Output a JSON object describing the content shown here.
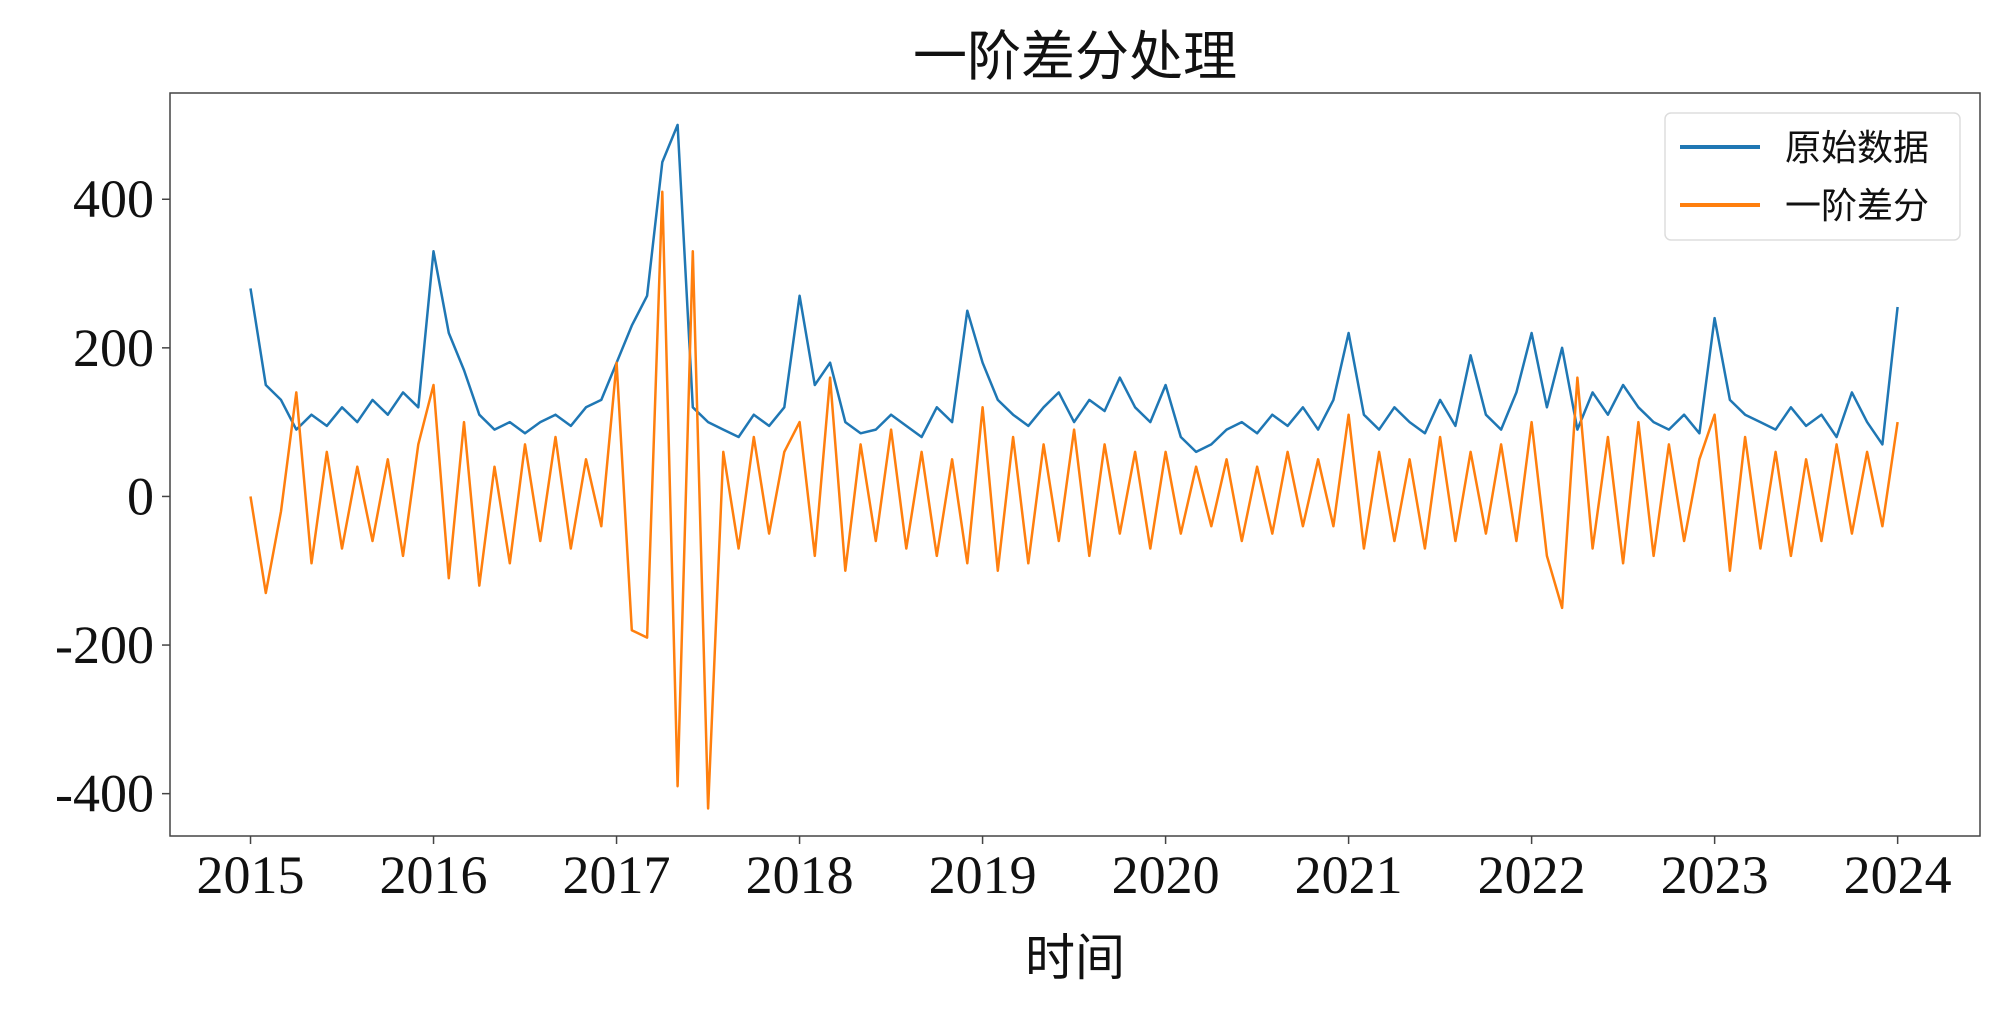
{
  "chart_data": {
    "type": "line",
    "title": "一阶差分处理",
    "xlabel": "时间",
    "ylabel": "",
    "xlim": [
      2014.56,
      2024.45
    ],
    "ylim": [
      -457,
      543
    ],
    "xticks": [
      2015,
      2016,
      2017,
      2018,
      2019,
      2020,
      2021,
      2022,
      2023,
      2024
    ],
    "xtick_labels": [
      "2015",
      "2016",
      "2017",
      "2018",
      "2019",
      "2020",
      "2021",
      "2022",
      "2023",
      "2024"
    ],
    "yticks": [
      -400,
      -200,
      0,
      200,
      400
    ],
    "ytick_labels": [
      "-400",
      "-200",
      "0",
      "200",
      "400"
    ],
    "grid": false,
    "legend_position": "top-right",
    "x_start": 2015,
    "x_step": 0.0833333,
    "series": [
      {
        "name": "原始数据",
        "color": "#1f77b4",
        "values": [
          280,
          150,
          130,
          90,
          110,
          95,
          120,
          100,
          130,
          110,
          140,
          120,
          330,
          220,
          170,
          110,
          90,
          100,
          85,
          100,
          110,
          95,
          120,
          130,
          180,
          230,
          270,
          450,
          500,
          120,
          100,
          90,
          80,
          110,
          95,
          120,
          270,
          150,
          180,
          100,
          85,
          90,
          110,
          95,
          80,
          120,
          100,
          250,
          180,
          130,
          110,
          95,
          120,
          140,
          100,
          130,
          115,
          160,
          120,
          100,
          150,
          80,
          60,
          70,
          90,
          100,
          85,
          110,
          95,
          120,
          90,
          130,
          220,
          110,
          90,
          120,
          100,
          85,
          130,
          95,
          190,
          110,
          90,
          140,
          220,
          120,
          200,
          90,
          140,
          110,
          150,
          120,
          100,
          90,
          110,
          85,
          240,
          130,
          110,
          100,
          90,
          120,
          95,
          110,
          80,
          140,
          100,
          70,
          255
        ]
      },
      {
        "name": "一阶差分",
        "color": "#ff7f0e",
        "values": [
          0,
          -130,
          -20,
          140,
          -90,
          60,
          -70,
          40,
          -60,
          50,
          -80,
          70,
          150,
          -110,
          100,
          -120,
          40,
          -90,
          70,
          -60,
          80,
          -70,
          50,
          -40,
          180,
          -180,
          -190,
          410,
          -390,
          330,
          -420,
          60,
          -70,
          80,
          -50,
          60,
          100,
          -80,
          160,
          -100,
          70,
          -60,
          90,
          -70,
          60,
          -80,
          50,
          -90,
          120,
          -100,
          80,
          -90,
          70,
          -60,
          90,
          -80,
          70,
          -50,
          60,
          -70,
          60,
          -50,
          40,
          -40,
          50,
          -60,
          40,
          -50,
          60,
          -40,
          50,
          -40,
          110,
          -70,
          60,
          -60,
          50,
          -70,
          80,
          -60,
          60,
          -50,
          70,
          -60,
          100,
          -80,
          -150,
          160,
          -70,
          80,
          -90,
          100,
          -80,
          70,
          -60,
          50,
          110,
          -100,
          80,
          -70,
          60,
          -80,
          50,
          -60,
          70,
          -50,
          60,
          -40,
          100
        ]
      }
    ]
  }
}
